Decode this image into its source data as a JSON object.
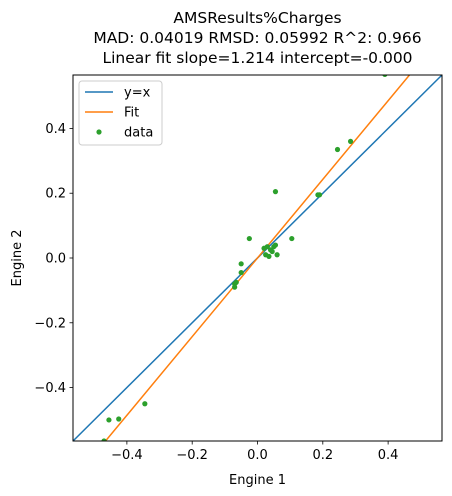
{
  "chart_data": {
    "type": "scatter",
    "title_lines": [
      "AMSResults%Charges",
      "MAD: 0.04019 RMSD: 0.05992 R^2: 0.966",
      "Linear fit slope=1.214 intercept=-0.000"
    ],
    "xlabel": "Engine 1",
    "ylabel": "Engine 2",
    "xlim": [
      -0.565,
      0.565
    ],
    "ylim": [
      -0.565,
      0.565
    ],
    "xticks": [
      -0.4,
      -0.2,
      0.0,
      0.2,
      0.4
    ],
    "yticks": [
      -0.4,
      -0.2,
      0.0,
      0.2,
      0.4
    ],
    "xtick_labels": [
      "−0.4",
      "−0.2",
      "0.0",
      "0.2",
      "0.4"
    ],
    "ytick_labels": [
      "−0.4",
      "−0.2",
      "0.0",
      "0.2",
      "0.4"
    ],
    "grid": false,
    "legend_position": "top-left",
    "series": [
      {
        "name": "y=x",
        "kind": "line",
        "color": "#1f77b4",
        "slope": 1.0,
        "intercept": 0.0
      },
      {
        "name": "Fit",
        "kind": "line",
        "color": "#ff7f0e",
        "slope": 1.214,
        "intercept": 0.0
      },
      {
        "name": "data",
        "kind": "scatter",
        "color": "#2ca02c",
        "points": [
          [
            -0.47,
            -0.565
          ],
          [
            -0.455,
            -0.5
          ],
          [
            -0.425,
            -0.497
          ],
          [
            -0.345,
            -0.45
          ],
          [
            -0.07,
            -0.09
          ],
          [
            -0.07,
            -0.08
          ],
          [
            -0.065,
            -0.075
          ],
          [
            -0.05,
            -0.045
          ],
          [
            -0.05,
            -0.018
          ],
          [
            -0.025,
            0.06
          ],
          [
            0.02,
            0.03
          ],
          [
            0.025,
            0.01
          ],
          [
            0.03,
            0.035
          ],
          [
            0.035,
            0.005
          ],
          [
            0.04,
            0.025
          ],
          [
            0.045,
            0.02
          ],
          [
            0.05,
            0.035
          ],
          [
            0.055,
            0.04
          ],
          [
            0.06,
            0.01
          ],
          [
            0.055,
            0.205
          ],
          [
            0.105,
            0.06
          ],
          [
            0.185,
            0.195
          ],
          [
            0.19,
            0.195
          ],
          [
            0.245,
            0.335
          ],
          [
            0.285,
            0.36
          ],
          [
            0.39,
            0.567
          ]
        ]
      }
    ]
  }
}
